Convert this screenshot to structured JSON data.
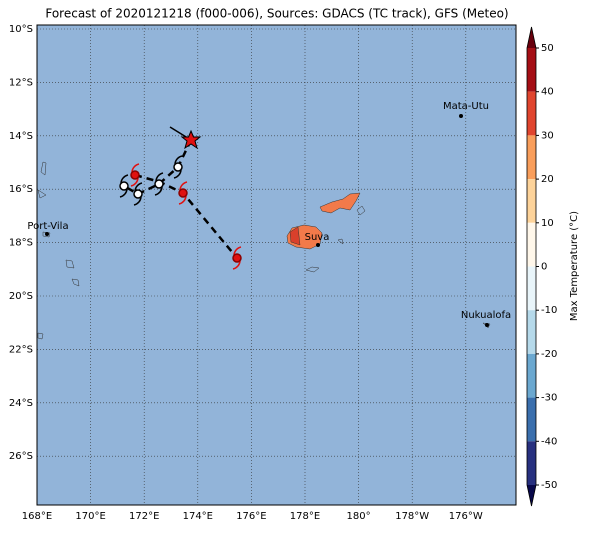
{
  "map": {
    "title": "Forecast of 2020121218 (f000-006), Sources: GDACS (TC track), GFS (Meteo)",
    "lon_labels": [
      "168°E",
      "170°E",
      "172°E",
      "174°E",
      "176°E",
      "178°E",
      "180°",
      "178°W",
      "176°W"
    ],
    "lat_labels": [
      "10°S",
      "12°S",
      "14°S",
      "16°S",
      "18°S",
      "20°S",
      "22°S",
      "24°S",
      "26°S"
    ],
    "places": [
      {
        "name": "Mata-Utu"
      },
      {
        "name": "Port-Vila"
      },
      {
        "name": "Suva"
      },
      {
        "name": "Nukualofa"
      }
    ],
    "colorbar": {
      "label": "Max Temperature (°C)",
      "ticks": [
        50,
        40,
        30,
        20,
        10,
        0,
        -10,
        -20,
        -30,
        -40,
        -50
      ]
    }
  }
}
